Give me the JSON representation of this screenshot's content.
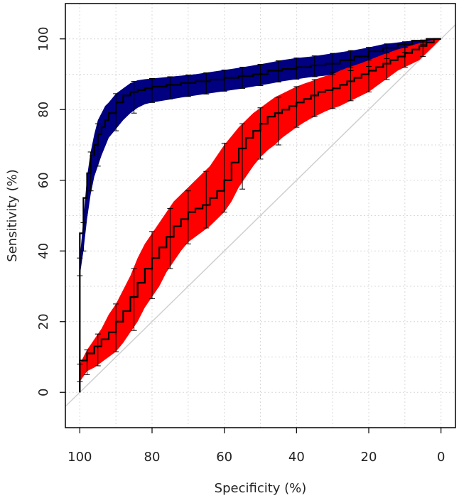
{
  "chart_data": {
    "type": "line",
    "xlabel": "Specificity (%)",
    "ylabel": "Sensitivity (%)",
    "xlim": [
      104,
      -4
    ],
    "ylim": [
      -10,
      110
    ],
    "x_reversed": true,
    "grid": true,
    "x_ticks": [
      100,
      80,
      60,
      40,
      20,
      0
    ],
    "y_ticks": [
      0,
      20,
      40,
      60,
      80,
      100
    ],
    "reference_line": [
      [
        104,
        -4
      ],
      [
        -4,
        104
      ]
    ],
    "series": [
      {
        "color": "#000080",
        "points": [
          [
            100,
            0
          ],
          [
            100,
            33
          ],
          [
            99,
            45
          ],
          [
            98,
            55
          ],
          [
            97,
            62
          ],
          [
            96,
            67
          ],
          [
            95,
            70
          ],
          [
            94,
            73
          ],
          [
            93,
            75
          ],
          [
            92,
            77
          ],
          [
            90,
            79
          ],
          [
            88,
            82
          ],
          [
            86,
            84
          ],
          [
            84,
            85
          ],
          [
            82,
            85.5
          ],
          [
            80,
            86
          ],
          [
            76,
            86.5
          ],
          [
            72,
            87
          ],
          [
            68,
            87.5
          ],
          [
            64,
            88
          ],
          [
            60,
            88.5
          ],
          [
            56,
            89
          ],
          [
            52,
            89.5
          ],
          [
            48,
            90
          ],
          [
            44,
            91
          ],
          [
            40,
            91.5
          ],
          [
            36,
            92
          ],
          [
            32,
            92.5
          ],
          [
            28,
            93
          ],
          [
            24,
            94
          ],
          [
            20,
            95
          ],
          [
            16,
            96.5
          ],
          [
            12,
            97.5
          ],
          [
            8,
            98.5
          ],
          [
            4,
            99.5
          ],
          [
            0,
            100
          ]
        ],
        "band_upper": [
          [
            100,
            38
          ],
          [
            99,
            49
          ],
          [
            98,
            61
          ],
          [
            97,
            68
          ],
          [
            96,
            73
          ],
          [
            95,
            77
          ],
          [
            94,
            79
          ],
          [
            93,
            81
          ],
          [
            92,
            82
          ],
          [
            90,
            84.5
          ],
          [
            88,
            86
          ],
          [
            86,
            87.5
          ],
          [
            84,
            88.3
          ],
          [
            82,
            88.6
          ],
          [
            80,
            88.8
          ],
          [
            76,
            89.2
          ],
          [
            72,
            89.6
          ],
          [
            68,
            90
          ],
          [
            64,
            90.6
          ],
          [
            60,
            91.2
          ],
          [
            56,
            91.8
          ],
          [
            52,
            92.5
          ],
          [
            48,
            93.2
          ],
          [
            44,
            94
          ],
          [
            40,
            94.6
          ],
          [
            36,
            95
          ],
          [
            32,
            95.6
          ],
          [
            28,
            96.2
          ],
          [
            24,
            96.8
          ],
          [
            20,
            97.6
          ],
          [
            16,
            98.5
          ],
          [
            12,
            99
          ],
          [
            8,
            99.5
          ],
          [
            4,
            99.8
          ],
          [
            0,
            100
          ]
        ],
        "band_lower": [
          [
            100,
            33
          ],
          [
            99,
            40
          ],
          [
            98,
            49
          ],
          [
            97,
            56
          ],
          [
            96,
            61
          ],
          [
            95,
            64
          ],
          [
            94,
            67
          ],
          [
            93,
            69.5
          ],
          [
            92,
            72
          ],
          [
            90,
            74.5
          ],
          [
            88,
            77
          ],
          [
            86,
            79
          ],
          [
            84,
            80.5
          ],
          [
            82,
            81.5
          ],
          [
            80,
            82
          ],
          [
            76,
            82.7
          ],
          [
            72,
            83.4
          ],
          [
            68,
            84
          ],
          [
            64,
            84.6
          ],
          [
            60,
            85.2
          ],
          [
            56,
            85.8
          ],
          [
            52,
            86.5
          ],
          [
            48,
            87.2
          ],
          [
            44,
            88
          ],
          [
            40,
            88.6
          ],
          [
            36,
            89.2
          ],
          [
            32,
            89.6
          ],
          [
            28,
            90.2
          ],
          [
            24,
            91.2
          ],
          [
            20,
            92.2
          ],
          [
            16,
            94
          ],
          [
            12,
            95.5
          ],
          [
            8,
            97
          ],
          [
            4,
            99
          ],
          [
            0,
            100
          ]
        ],
        "errorbars": [
          {
            "x": 100,
            "lo": 33,
            "hi": 38
          },
          {
            "x": 99,
            "lo": 40,
            "hi": 48
          },
          {
            "x": 97,
            "lo": 57,
            "hi": 68
          },
          {
            "x": 95,
            "lo": 64,
            "hi": 76
          },
          {
            "x": 90,
            "lo": 74,
            "hi": 84.5
          },
          {
            "x": 85,
            "lo": 79,
            "hi": 88
          },
          {
            "x": 80,
            "lo": 82,
            "hi": 88.8
          },
          {
            "x": 75,
            "lo": 83,
            "hi": 89.3
          },
          {
            "x": 70,
            "lo": 83.7,
            "hi": 89.8
          },
          {
            "x": 65,
            "lo": 84.4,
            "hi": 90.4
          },
          {
            "x": 60,
            "lo": 85.2,
            "hi": 91.2
          },
          {
            "x": 55,
            "lo": 86,
            "hi": 92
          },
          {
            "x": 50,
            "lo": 86.8,
            "hi": 92.8
          },
          {
            "x": 45,
            "lo": 87.8,
            "hi": 93.8
          },
          {
            "x": 40,
            "lo": 88.6,
            "hi": 94.6
          },
          {
            "x": 35,
            "lo": 89.3,
            "hi": 95.2
          },
          {
            "x": 30,
            "lo": 89.9,
            "hi": 95.9
          },
          {
            "x": 25,
            "lo": 91,
            "hi": 96.7
          },
          {
            "x": 20,
            "lo": 92.2,
            "hi": 97.6
          },
          {
            "x": 15,
            "lo": 94.4,
            "hi": 98.6
          },
          {
            "x": 10,
            "lo": 96.2,
            "hi": 99.2
          },
          {
            "x": 5,
            "lo": 98.5,
            "hi": 99.7
          }
        ]
      },
      {
        "color": "#ff0000",
        "points": [
          [
            100,
            0
          ],
          [
            100,
            5
          ],
          [
            98,
            9
          ],
          [
            96,
            11
          ],
          [
            94,
            13
          ],
          [
            92,
            15
          ],
          [
            90,
            17
          ],
          [
            88,
            20
          ],
          [
            86,
            23
          ],
          [
            84,
            27
          ],
          [
            82,
            31
          ],
          [
            80,
            35
          ],
          [
            78,
            38
          ],
          [
            76,
            41
          ],
          [
            74,
            44
          ],
          [
            72,
            47
          ],
          [
            70,
            49
          ],
          [
            68,
            51
          ],
          [
            66,
            52
          ],
          [
            64,
            53
          ],
          [
            62,
            55
          ],
          [
            60,
            57
          ],
          [
            58,
            60
          ],
          [
            56,
            65
          ],
          [
            54,
            69
          ],
          [
            52,
            72
          ],
          [
            50,
            74
          ],
          [
            48,
            76
          ],
          [
            46,
            78
          ],
          [
            44,
            79
          ],
          [
            42,
            80
          ],
          [
            40,
            81
          ],
          [
            38,
            82
          ],
          [
            36,
            83
          ],
          [
            34,
            84
          ],
          [
            32,
            85
          ],
          [
            30,
            85.5
          ],
          [
            28,
            86
          ],
          [
            26,
            87
          ],
          [
            24,
            88
          ],
          [
            22,
            89
          ],
          [
            20,
            90
          ],
          [
            18,
            91
          ],
          [
            16,
            92
          ],
          [
            14,
            93
          ],
          [
            12,
            94
          ],
          [
            10,
            95
          ],
          [
            8,
            96
          ],
          [
            6,
            97
          ],
          [
            4,
            98
          ],
          [
            2,
            99
          ],
          [
            0,
            100
          ]
        ],
        "band_upper": [
          [
            100,
            8
          ],
          [
            98,
            12
          ],
          [
            96,
            15
          ],
          [
            94,
            18
          ],
          [
            92,
            22
          ],
          [
            90,
            25
          ],
          [
            88,
            29
          ],
          [
            86,
            33
          ],
          [
            84,
            38
          ],
          [
            82,
            42
          ],
          [
            80,
            45
          ],
          [
            78,
            48
          ],
          [
            76,
            51
          ],
          [
            74,
            54
          ],
          [
            72,
            56
          ],
          [
            70,
            58
          ],
          [
            68,
            60
          ],
          [
            66,
            62
          ],
          [
            64,
            64
          ],
          [
            62,
            67
          ],
          [
            60,
            70
          ],
          [
            58,
            72.5
          ],
          [
            56,
            75
          ],
          [
            54,
            77
          ],
          [
            52,
            79
          ],
          [
            50,
            80.5
          ],
          [
            48,
            82
          ],
          [
            46,
            83.5
          ],
          [
            44,
            84.5
          ],
          [
            42,
            85.5
          ],
          [
            40,
            86.5
          ],
          [
            38,
            87.3
          ],
          [
            36,
            88
          ],
          [
            34,
            88.8
          ],
          [
            32,
            89.5
          ],
          [
            30,
            90
          ],
          [
            28,
            91
          ],
          [
            26,
            91.8
          ],
          [
            24,
            92.5
          ],
          [
            22,
            93.2
          ],
          [
            20,
            94
          ],
          [
            18,
            94.8
          ],
          [
            16,
            95.6
          ],
          [
            14,
            96.3
          ],
          [
            12,
            97
          ],
          [
            10,
            97.6
          ],
          [
            8,
            98.2
          ],
          [
            6,
            98.8
          ],
          [
            4,
            99.3
          ],
          [
            2,
            99.7
          ],
          [
            0,
            100
          ]
        ],
        "band_lower": [
          [
            100,
            3
          ],
          [
            98,
            6
          ],
          [
            96,
            7
          ],
          [
            94,
            8.5
          ],
          [
            92,
            10
          ],
          [
            90,
            11.5
          ],
          [
            88,
            14
          ],
          [
            86,
            17
          ],
          [
            84,
            20
          ],
          [
            82,
            24
          ],
          [
            80,
            27
          ],
          [
            78,
            30
          ],
          [
            76,
            34
          ],
          [
            74,
            37
          ],
          [
            72,
            40
          ],
          [
            70,
            42.5
          ],
          [
            68,
            44
          ],
          [
            66,
            45.5
          ],
          [
            64,
            47
          ],
          [
            62,
            49
          ],
          [
            60,
            51
          ],
          [
            58,
            54
          ],
          [
            56,
            58
          ],
          [
            54,
            61
          ],
          [
            52,
            64
          ],
          [
            50,
            66.5
          ],
          [
            48,
            68.5
          ],
          [
            46,
            70
          ],
          [
            44,
            72
          ],
          [
            42,
            73.5
          ],
          [
            40,
            75
          ],
          [
            38,
            76.3
          ],
          [
            36,
            77.5
          ],
          [
            34,
            78.5
          ],
          [
            32,
            79.5
          ],
          [
            30,
            80.3
          ],
          [
            28,
            81
          ],
          [
            26,
            82
          ],
          [
            24,
            83
          ],
          [
            22,
            84
          ],
          [
            20,
            85
          ],
          [
            18,
            86.5
          ],
          [
            16,
            88
          ],
          [
            14,
            89.5
          ],
          [
            12,
            91
          ],
          [
            10,
            92
          ],
          [
            8,
            93
          ],
          [
            6,
            94
          ],
          [
            4,
            96
          ],
          [
            2,
            98
          ],
          [
            0,
            100
          ]
        ],
        "errorbars": [
          {
            "x": 100,
            "lo": 3,
            "hi": 8
          },
          {
            "x": 98,
            "lo": 5,
            "hi": 12
          },
          {
            "x": 95,
            "lo": 7.5,
            "hi": 16.5
          },
          {
            "x": 90,
            "lo": 11.5,
            "hi": 25
          },
          {
            "x": 85,
            "lo": 17.5,
            "hi": 35
          },
          {
            "x": 80,
            "lo": 26.5,
            "hi": 45.5
          },
          {
            "x": 75,
            "lo": 35,
            "hi": 52
          },
          {
            "x": 70,
            "lo": 42,
            "hi": 57
          },
          {
            "x": 65,
            "lo": 46.5,
            "hi": 62.5
          },
          {
            "x": 60,
            "lo": 51,
            "hi": 70.5
          },
          {
            "x": 55,
            "lo": 57.5,
            "hi": 76
          },
          {
            "x": 50,
            "lo": 66,
            "hi": 80.5
          },
          {
            "x": 45,
            "lo": 70,
            "hi": 83.5
          },
          {
            "x": 40,
            "lo": 75,
            "hi": 86.5
          },
          {
            "x": 35,
            "lo": 78,
            "hi": 88.5
          },
          {
            "x": 30,
            "lo": 80.3,
            "hi": 90.5
          },
          {
            "x": 25,
            "lo": 82.5,
            "hi": 92
          },
          {
            "x": 20,
            "lo": 85,
            "hi": 94
          },
          {
            "x": 15,
            "lo": 88.5,
            "hi": 96
          },
          {
            "x": 10,
            "lo": 92,
            "hi": 97.6
          },
          {
            "x": 5,
            "lo": 95,
            "hi": 99
          }
        ]
      }
    ]
  }
}
